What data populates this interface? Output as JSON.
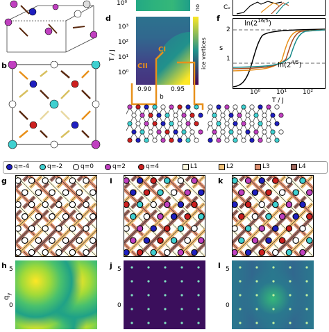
{
  "panel_labels": {
    "b": "b",
    "d": "d",
    "f": "f",
    "g": "g",
    "i": "i",
    "k": "k",
    "h": "h",
    "j": "j",
    "l": "l"
  },
  "panel_d": {
    "ylabel": "T / J",
    "xlabel": "b",
    "yticks": [
      "10³",
      "10²",
      "10¹",
      "10⁰"
    ],
    "xticks": [
      "0.90",
      "0.95"
    ],
    "colorbar_label": "ice vertices",
    "colorbar_top_label": "no",
    "region_ci": "CI",
    "region_cii": "CII",
    "top_tick": "10⁰"
  },
  "panel_f": {
    "ylabel": "s",
    "cv_label": "Cᵥ",
    "xlabel": "T / J",
    "xticks": [
      "10⁰",
      "10¹",
      "10²"
    ],
    "yticks": [
      "2",
      "1"
    ],
    "ann_upper": "ln(2^{16/5})",
    "ann_upper_base": "ln(2",
    "ann_upper_exp": "16/5",
    "ann_lower_base": "ln(2",
    "ann_lower_exp": "4/5"
  },
  "legend": {
    "items": [
      {
        "label": "q=-4",
        "color": "#1f1fbf",
        "type": "dot"
      },
      {
        "label": "q=-2",
        "color": "#3fd0d0",
        "type": "dot"
      },
      {
        "label": "q=0",
        "color": "#ffffff",
        "type": "dot"
      },
      {
        "label": "q=2",
        "color": "#c040c0",
        "type": "dot"
      },
      {
        "label": "q=4",
        "color": "#cc2020",
        "type": "dot"
      },
      {
        "label": "L1",
        "color": "#fffbe0",
        "type": "sq"
      },
      {
        "label": "L2",
        "color": "#f2c27a",
        "type": "sq"
      },
      {
        "label": "L3",
        "color": "#e09070",
        "type": "sq"
      },
      {
        "label": "L4",
        "color": "#a06a60",
        "type": "sq"
      }
    ]
  },
  "bottom_axes": {
    "qy": "q",
    "qy_sub": "y",
    "tick5": "5",
    "tick0": "0"
  },
  "colors": {
    "viridis_dark": "#440154",
    "viridis_mid": "#21918c",
    "viridis_light": "#fde725",
    "arrow": "#5a2a10",
    "orange": "#e8901a"
  }
}
